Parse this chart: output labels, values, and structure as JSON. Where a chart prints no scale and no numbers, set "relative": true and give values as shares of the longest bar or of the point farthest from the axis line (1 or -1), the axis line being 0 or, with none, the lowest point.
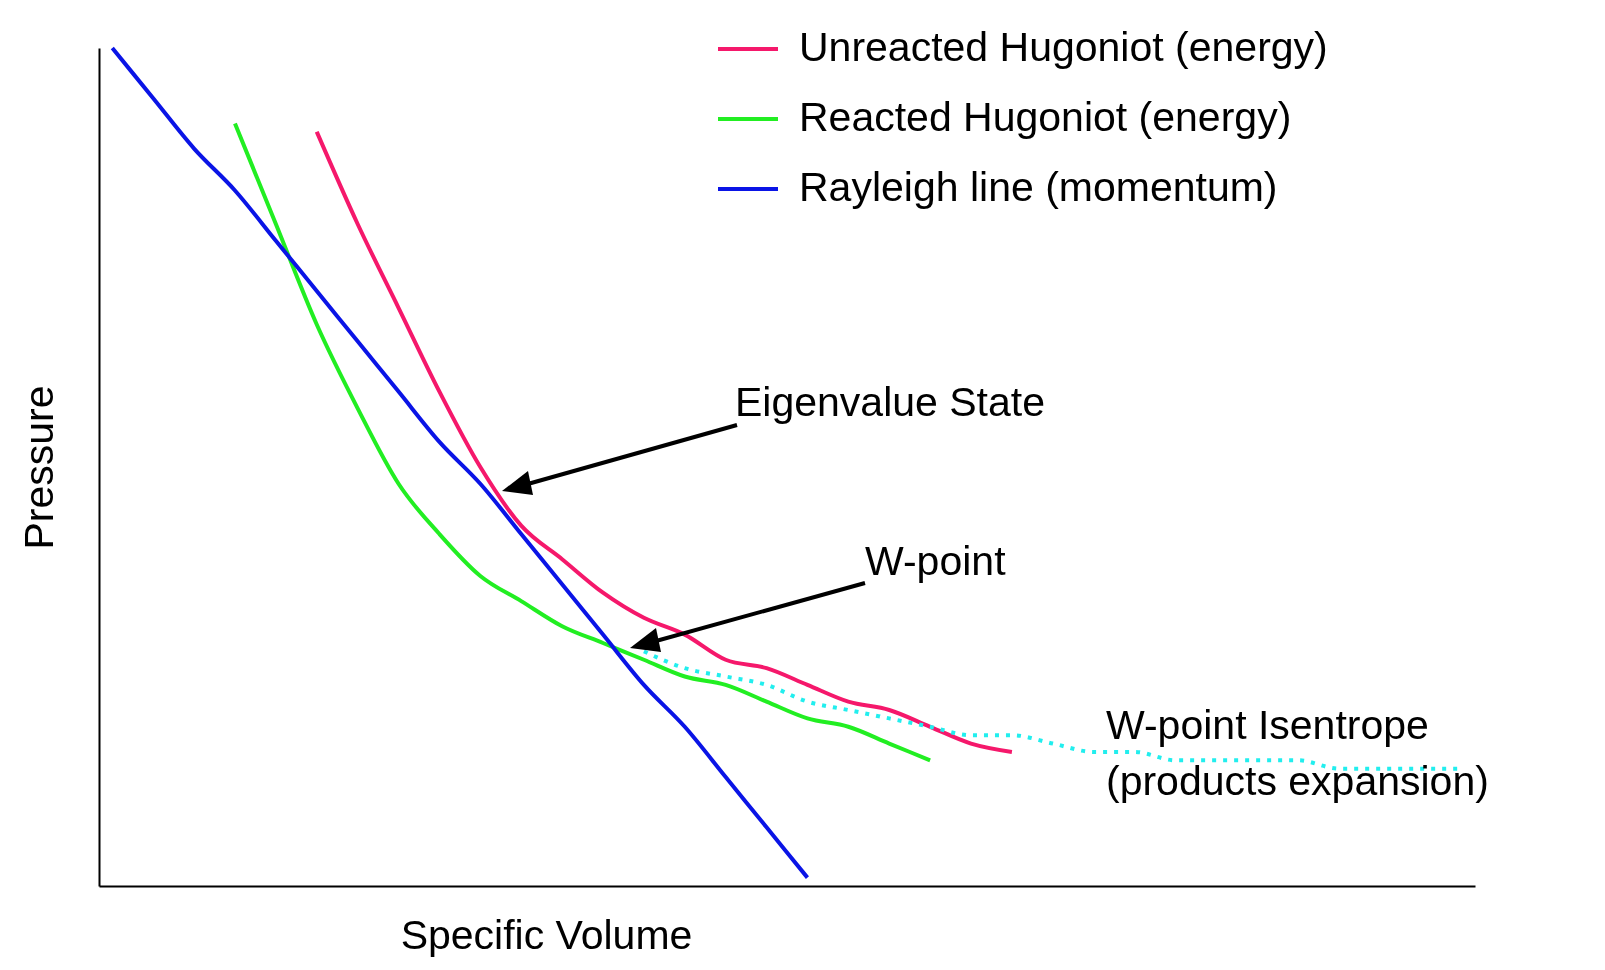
{
  "chart_data": {
    "type": "line",
    "relative": true,
    "xlabel": "Specific Volume",
    "ylabel": "Pressure",
    "categories": [
      null,
      null,
      null,
      null,
      null,
      null,
      null,
      null,
      null,
      null,
      null,
      null,
      null,
      null,
      null,
      null,
      null,
      null,
      null,
      null,
      null,
      null,
      null,
      null,
      null,
      null,
      null,
      null,
      null,
      null,
      null,
      null,
      null,
      null
    ],
    "series": [
      {
        "name": "Unreacted Hugoniot (energy)",
        "color": "#f5186b",
        "values": [
          null,
          null,
          null,
          null,
          null,
          0.9,
          0.79,
          0.69,
          0.59,
          0.5,
          0.43,
          0.39,
          0.35,
          0.32,
          0.3,
          0.27,
          0.26,
          0.24,
          0.22,
          0.21,
          0.19,
          0.17,
          0.16,
          null,
          null,
          null,
          null,
          null,
          null,
          null,
          null,
          null,
          null,
          null
        ]
      },
      {
        "name": "Reacted Hugoniot (energy)",
        "color": "#22ee22",
        "values": [
          null,
          null,
          null,
          0.91,
          0.79,
          0.67,
          0.57,
          0.48,
          0.42,
          0.37,
          0.34,
          0.31,
          0.29,
          0.27,
          0.25,
          0.24,
          0.22,
          0.2,
          0.19,
          0.17,
          0.15,
          null,
          null,
          null,
          null,
          null,
          null,
          null,
          null,
          null,
          null,
          null,
          null,
          null
        ]
      },
      {
        "name": "Rayleigh line (momentum)",
        "color": "#0a14e6",
        "values": [
          1,
          0.94,
          0.88,
          0.83,
          0.77,
          0.71,
          0.65,
          0.59,
          0.53,
          0.48,
          0.42,
          0.36,
          0.3,
          0.24,
          0.19,
          0.13,
          0.07,
          0.01,
          null,
          null,
          null,
          null,
          null,
          null,
          null,
          null,
          null,
          null,
          null,
          null,
          null,
          null,
          null,
          null
        ]
      },
      {
        "color": "#22eeee",
        "line_style": "dotted",
        "values": [
          null,
          null,
          null,
          null,
          null,
          null,
          null,
          null,
          null,
          null,
          null,
          null,
          null,
          0.28,
          0.26,
          0.25,
          0.24,
          0.22,
          0.21,
          0.2,
          0.19,
          0.18,
          0.18,
          0.17,
          0.16,
          0.16,
          0.15,
          0.15,
          0.15,
          0.15,
          0.14,
          0.14,
          0.14,
          0.14
        ]
      }
    ],
    "annotations": [
      "Eigenvalue State",
      "W-point",
      "W-point Isentrope",
      "(products expansion)"
    ],
    "legend": "top right"
  }
}
